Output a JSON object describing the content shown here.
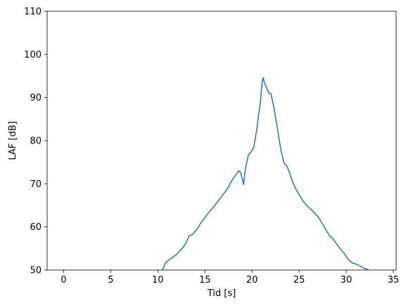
{
  "chart_data": {
    "type": "line",
    "title": "",
    "xlabel": "Tid [s]",
    "ylabel": "LAF [dB]",
    "xlim": [
      -1.75,
      35.3
    ],
    "ylim": [
      50,
      110
    ],
    "xticks": [
      0,
      5,
      10,
      15,
      20,
      25,
      30,
      35
    ],
    "yticks": [
      50,
      60,
      70,
      80,
      90,
      100,
      110
    ],
    "grid": false,
    "legend": "none",
    "series": [
      {
        "color": "#1f77b4",
        "x": [
          10.5,
          10.8,
          11.2,
          11.6,
          12.0,
          12.3,
          12.6,
          13.0,
          13.3,
          13.7,
          14.2,
          14.6,
          15.0,
          15.5,
          15.9,
          16.2,
          16.6,
          17.0,
          17.4,
          17.8,
          18.2,
          18.6,
          18.8,
          19.1,
          19.3,
          19.6,
          19.9,
          20.2,
          20.5,
          20.7,
          20.9,
          21.0,
          21.1,
          21.2,
          21.3,
          21.5,
          21.8,
          22.0,
          22.3,
          22.6,
          22.9,
          23.1,
          23.4,
          23.7,
          24.0,
          24.3,
          24.6,
          25.0,
          25.4,
          25.8,
          26.2,
          26.6,
          27.0,
          27.4,
          27.8,
          28.2,
          28.6,
          29.0,
          29.4,
          29.8,
          30.2,
          30.6,
          31.0,
          31.4,
          31.8,
          32.1,
          32.4
        ],
        "y": [
          50.0,
          51.6,
          52.4,
          53.0,
          53.6,
          54.4,
          55.0,
          56.3,
          57.9,
          58.3,
          59.6,
          61.0,
          62.2,
          63.6,
          64.6,
          65.4,
          66.6,
          67.7,
          68.9,
          70.5,
          71.8,
          73.0,
          72.6,
          69.8,
          73.5,
          76.6,
          77.4,
          78.6,
          82.5,
          86.0,
          89.0,
          92.0,
          94.0,
          94.6,
          93.5,
          92.5,
          91.0,
          90.9,
          88.0,
          84.0,
          80.0,
          77.5,
          74.8,
          74.1,
          72.5,
          70.5,
          69.0,
          67.5,
          66.0,
          65.0,
          64.2,
          63.3,
          62.4,
          61.0,
          59.5,
          58.0,
          57.2,
          56.0,
          54.8,
          53.8,
          52.5,
          51.7,
          51.4,
          51.0,
          50.5,
          50.2,
          50.0
        ]
      }
    ]
  }
}
